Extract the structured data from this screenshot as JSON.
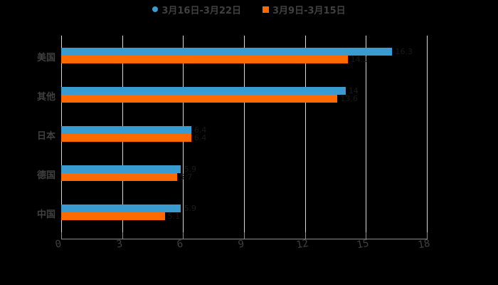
{
  "chart_data": {
    "type": "bar",
    "orientation": "horizontal",
    "title": "",
    "xlabel": "",
    "ylabel": "",
    "categories": [
      "美国",
      "其他",
      "日本",
      "德国",
      "中国"
    ],
    "series": [
      {
        "name": "3月16日-3月22日",
        "color": "#3a9bd0",
        "marker": "circle",
        "values": [
          16.3,
          14.0,
          6.4,
          5.9,
          5.9
        ]
      },
      {
        "name": "3月9日-3月15日",
        "color": "#ff6a00",
        "marker": "square",
        "values": [
          14.1,
          13.6,
          6.4,
          5.7,
          5.1
        ]
      }
    ],
    "xlim": [
      0,
      18
    ],
    "xticks": [
      "0",
      "3",
      "6",
      "9",
      "12",
      "15",
      "18"
    ],
    "grid": "vertical",
    "legend_position": "top"
  },
  "legend": {
    "items": [
      {
        "label": "3月16日-3月22日",
        "color": "#3a9bd0"
      },
      {
        "label": "3月9日-3月15日",
        "color": "#ff6a00"
      }
    ]
  }
}
